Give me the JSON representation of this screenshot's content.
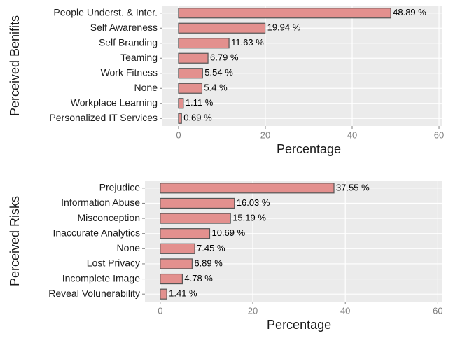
{
  "chart_data": [
    {
      "type": "bar",
      "orientation": "horizontal",
      "x_label": "Percentage",
      "y_label": "Perceived Benifits",
      "categories": [
        "People Underst. & Inter.",
        "Self Awareness",
        "Self Branding",
        "Teaming",
        "Work Fitness",
        "None",
        "Workplace Learning",
        "Personalized IT Services"
      ],
      "values": [
        48.89,
        19.94,
        11.63,
        6.79,
        5.54,
        5.4,
        1.11,
        0.69
      ],
      "value_labels": [
        "48.89 %",
        "19.94 %",
        "11.63 %",
        "6.79 %",
        "5.54 %",
        "5.4 %",
        "1.11 %",
        "0.69 %"
      ],
      "color": "#e3908e",
      "xlim": [
        -3.7,
        60.8
      ],
      "xticks": [
        0,
        20,
        40,
        60
      ],
      "grid": true
    },
    {
      "type": "bar",
      "orientation": "horizontal",
      "x_label": "Percentage",
      "y_label": "Perceived Risks",
      "categories": [
        "Prejudice",
        "Information Abuse",
        "Misconception",
        "Inaccurate Analytics",
        "None",
        "Lost Privacy",
        "Incomplete Image",
        "Reveal Volunerability"
      ],
      "values": [
        37.55,
        16.03,
        15.19,
        10.69,
        7.45,
        6.89,
        4.78,
        1.41
      ],
      "value_labels": [
        "37.55 %",
        "16.03 %",
        "15.19 %",
        "10.69 %",
        "7.45 %",
        "6.89 %",
        "4.78 %",
        "1.41 %"
      ],
      "color": "#e3908e",
      "xlim": [
        -3.3,
        61
      ],
      "xticks": [
        0,
        20,
        40,
        60
      ],
      "grid": true
    }
  ]
}
